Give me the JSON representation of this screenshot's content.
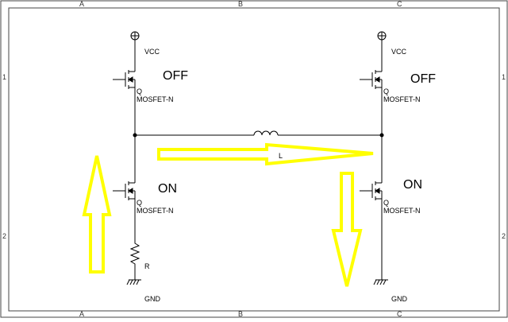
{
  "frame": {
    "columns": [
      "A",
      "B",
      "C"
    ],
    "rows": [
      "1",
      "2"
    ]
  },
  "labels": {
    "vcc": "VCC",
    "gnd": "GND",
    "transistor_ref": "Q",
    "transistor_type": "MOSFET-N",
    "inductor_ref": "L",
    "resistor_ref": "R"
  },
  "states": {
    "left_high": "OFF",
    "right_high": "OFF",
    "left_low": "ON",
    "right_low": "ON"
  },
  "colors": {
    "wire": "#000000",
    "frame": "#444444",
    "arrow_fill": "#ffff00",
    "arrow_stroke": "#e6e600"
  }
}
